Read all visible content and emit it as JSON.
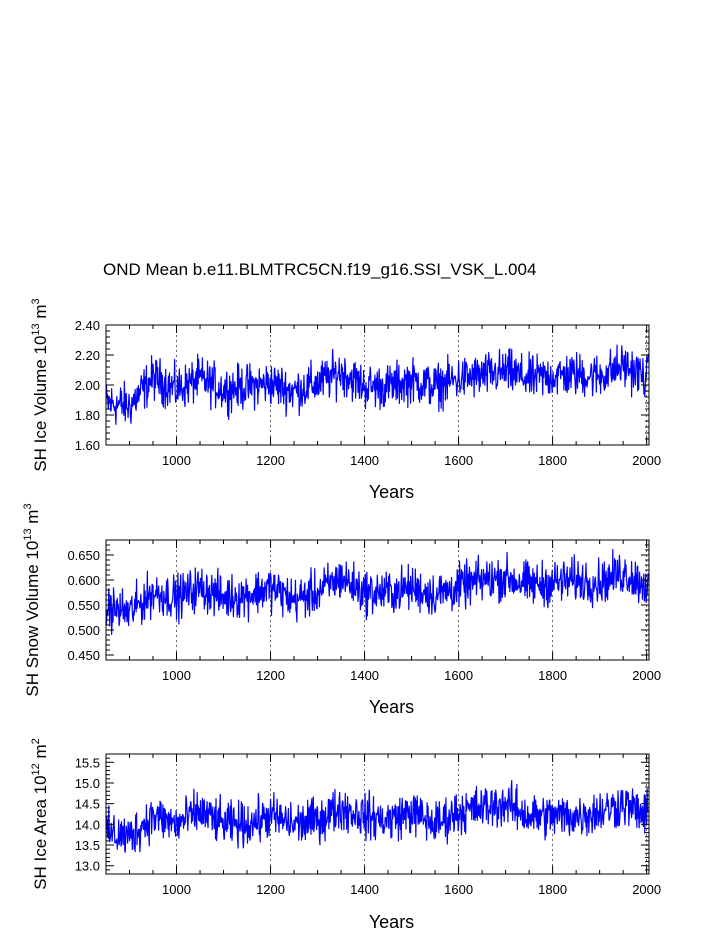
{
  "figure": {
    "title": "OND Mean b.e11.BLMTRC5CN.f19_g16.SSI_VSK_L.004",
    "line_color": "#0000ff"
  },
  "chart_data": [
    {
      "type": "line",
      "series_name": "SH Ice Volume",
      "ylabel": {
        "text": "SH Ice Volume 10",
        "exp": "13",
        "unit": " m",
        "unit_exp": "3"
      },
      "xlabel": "Years",
      "xlim": [
        850,
        2005
      ],
      "ylim": [
        1.6,
        2.4
      ],
      "xticks": [
        1000,
        1200,
        1400,
        1600,
        1800,
        2000
      ],
      "xtick_labels": [
        "1000",
        "1200",
        "1400",
        "1600",
        "1800",
        "2000"
      ],
      "yticks": [
        1.6,
        1.8,
        2.0,
        2.2,
        2.4
      ],
      "ytick_labels": [
        "1.60",
        "1.80",
        "2.00",
        "2.20",
        "2.40"
      ],
      "grid": "vertical dashed at x ticks",
      "x": [
        850,
        900,
        950,
        1000,
        1050,
        1100,
        1150,
        1200,
        1250,
        1300,
        1350,
        1400,
        1450,
        1500,
        1550,
        1600,
        1650,
        1700,
        1750,
        1800,
        1850,
        1900,
        1950,
        2000
      ],
      "y": [
        1.88,
        1.86,
        2.05,
        1.97,
        2.04,
        1.97,
        1.99,
        2.01,
        1.96,
        2.01,
        2.09,
        1.99,
        1.99,
        2.03,
        1.99,
        2.04,
        2.06,
        2.09,
        2.04,
        2.06,
        2.07,
        2.06,
        2.13,
        2.05
      ]
    },
    {
      "type": "line",
      "series_name": "SH Snow Volume",
      "ylabel": {
        "text": "SH Snow Volume 10",
        "exp": "13",
        "unit": " m",
        "unit_exp": "3"
      },
      "xlabel": "Years",
      "xlim": [
        850,
        2005
      ],
      "ylim": [
        0.44,
        0.68
      ],
      "xticks": [
        1000,
        1200,
        1400,
        1600,
        1800,
        2000
      ],
      "xtick_labels": [
        "1000",
        "1200",
        "1400",
        "1600",
        "1800",
        "2000"
      ],
      "yticks": [
        0.45,
        0.5,
        0.55,
        0.6,
        0.65
      ],
      "ytick_labels": [
        "0.450",
        "0.500",
        "0.550",
        "0.600",
        "0.650"
      ],
      "grid": "vertical dashed at x ticks",
      "x": [
        850,
        900,
        950,
        1000,
        1050,
        1100,
        1150,
        1200,
        1250,
        1300,
        1350,
        1400,
        1450,
        1500,
        1550,
        1600,
        1650,
        1700,
        1750,
        1800,
        1850,
        1900,
        1950,
        2000
      ],
      "y": [
        0.545,
        0.535,
        0.575,
        0.565,
        0.585,
        0.565,
        0.57,
        0.585,
        0.56,
        0.575,
        0.605,
        0.575,
        0.575,
        0.585,
        0.57,
        0.585,
        0.6,
        0.605,
        0.59,
        0.595,
        0.6,
        0.595,
        0.615,
        0.59
      ]
    },
    {
      "type": "line",
      "series_name": "SH Ice Area",
      "ylabel": {
        "text": "SH Ice Area 10",
        "exp": "12",
        "unit": " m",
        "unit_exp": "2"
      },
      "xlabel": "Years",
      "xlim": [
        850,
        2005
      ],
      "ylim": [
        12.8,
        15.7
      ],
      "xticks": [
        1000,
        1200,
        1400,
        1600,
        1800,
        2000
      ],
      "xtick_labels": [
        "1000",
        "1200",
        "1400",
        "1600",
        "1800",
        "2000"
      ],
      "yticks": [
        13.0,
        13.5,
        14.0,
        14.5,
        15.0,
        15.5
      ],
      "ytick_labels": [
        "13.0",
        "13.5",
        "14.0",
        "14.5",
        "15.0",
        "15.5"
      ],
      "grid": "vertical dashed at x ticks",
      "x": [
        850,
        900,
        950,
        1000,
        1050,
        1100,
        1150,
        1200,
        1250,
        1300,
        1350,
        1400,
        1450,
        1500,
        1550,
        1600,
        1650,
        1700,
        1750,
        1800,
        1850,
        1900,
        1950,
        2000
      ],
      "y": [
        13.8,
        13.7,
        14.2,
        14.0,
        14.3,
        14.0,
        14.0,
        14.2,
        14.0,
        14.1,
        14.4,
        14.2,
        14.1,
        14.3,
        14.0,
        14.3,
        14.4,
        14.5,
        14.2,
        14.2,
        14.2,
        14.3,
        14.5,
        14.2
      ]
    }
  ]
}
